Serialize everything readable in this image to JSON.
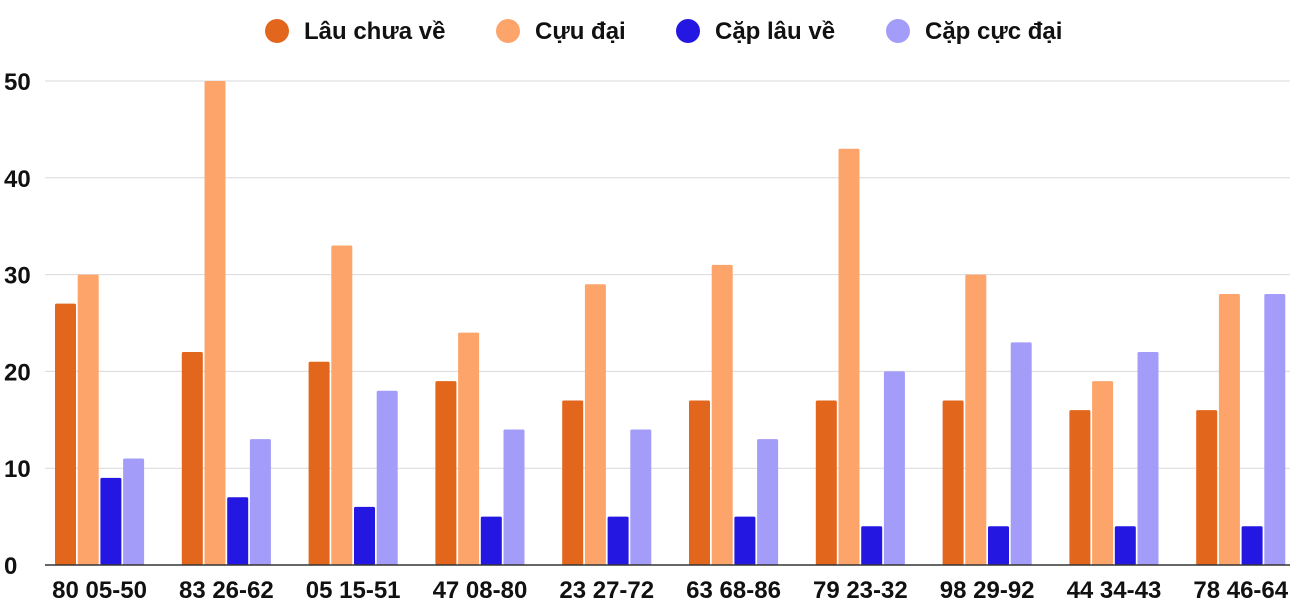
{
  "chart_data": {
    "type": "bar",
    "title": "",
    "xlabel": "",
    "ylabel": "",
    "ylim": [
      0,
      50
    ],
    "yticks": [
      0,
      10,
      20,
      30,
      40,
      50
    ],
    "grid": true,
    "legend_position": "top",
    "categories": [
      "80 05-50",
      "83 26-62",
      "05 15-51",
      "47 08-80",
      "23 27-72",
      "63 68-86",
      "79 23-32",
      "98 29-92",
      "44 34-43",
      "78 46-64"
    ],
    "series": [
      {
        "name": "Lâu chưa về",
        "color": "#e2661b",
        "values": [
          27,
          22,
          21,
          19,
          17,
          17,
          17,
          17,
          16,
          16
        ]
      },
      {
        "name": "Cựu đại",
        "color": "#fda46b",
        "values": [
          30,
          50,
          33,
          24,
          29,
          31,
          43,
          30,
          19,
          28
        ]
      },
      {
        "name": "Cặp lâu về",
        "color": "#2417e2",
        "values": [
          9,
          7,
          6,
          5,
          5,
          5,
          4,
          4,
          4,
          4
        ]
      },
      {
        "name": "Cặp cực đại",
        "color": "#a39cf9",
        "values": [
          11,
          13,
          18,
          14,
          14,
          13,
          20,
          23,
          22,
          28
        ]
      }
    ]
  }
}
